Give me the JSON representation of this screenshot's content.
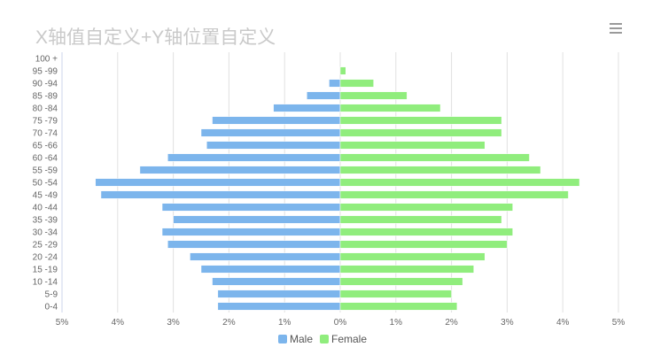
{
  "chart_data": {
    "type": "bar",
    "orientation": "horizontal",
    "stacked": true,
    "title": "X轴值自定义+Y轴位置自定义",
    "categories": [
      "0-4",
      "5-9",
      "10 -14",
      "15 -19",
      "20 -24",
      "25 -29",
      "30 -34",
      "35 -39",
      "40 -44",
      "45 -49",
      "50 -54",
      "55 -59",
      "60 -64",
      "65 -66",
      "70 -74",
      "75 -79",
      "80 -84",
      "85 -89",
      "90 -94",
      "95 -99",
      "100 +"
    ],
    "series": [
      {
        "name": "Male",
        "color": "#7cb5ec",
        "values": [
          -2.2,
          -2.2,
          -2.3,
          -2.5,
          -2.7,
          -3.1,
          -3.2,
          -3.0,
          -3.2,
          -4.3,
          -4.4,
          -3.6,
          -3.1,
          -2.4,
          -2.5,
          -2.3,
          -1.2,
          -0.6,
          -0.2,
          0,
          0
        ]
      },
      {
        "name": "Female",
        "color": "#90ed7d",
        "values": [
          2.1,
          2.0,
          2.2,
          2.4,
          2.6,
          3.0,
          3.1,
          2.9,
          3.1,
          4.1,
          4.3,
          3.6,
          3.4,
          2.6,
          2.9,
          2.9,
          1.8,
          1.2,
          0.6,
          0.1,
          0
        ]
      }
    ],
    "x_ticks": [
      "5%",
      "4%",
      "3%",
      "2%",
      "1%",
      "0%",
      "1%",
      "2%",
      "3%",
      "4%",
      "5%"
    ],
    "xlim": [
      -5,
      5
    ],
    "grid": true,
    "legend_position": "bottom-center"
  },
  "icons": {
    "menu": "hamburger-menu-icon"
  }
}
